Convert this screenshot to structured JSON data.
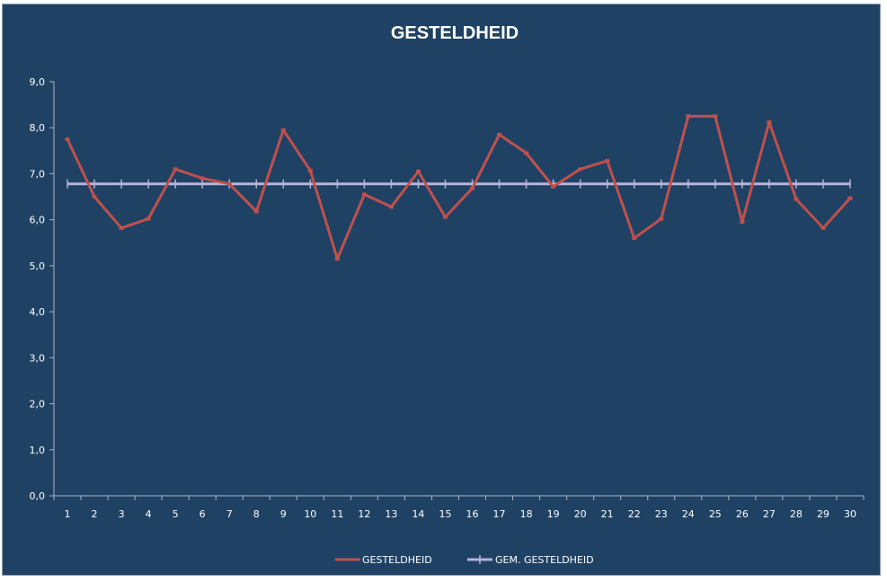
{
  "chart_data": {
    "type": "line",
    "title": "GESTELDHEID",
    "xlabel": "",
    "ylabel": "",
    "ylim": [
      0,
      9
    ],
    "y_ticks": [
      "0,0",
      "1,0",
      "2,0",
      "3,0",
      "4,0",
      "5,0",
      "6,0",
      "7,0",
      "8,0",
      "9,0"
    ],
    "y_tick_values": [
      0,
      1,
      2,
      3,
      4,
      5,
      6,
      7,
      8,
      9
    ],
    "categories": [
      "1",
      "2",
      "3",
      "4",
      "5",
      "6",
      "7",
      "8",
      "9",
      "10",
      "11",
      "12",
      "13",
      "14",
      "15",
      "16",
      "17",
      "18",
      "19",
      "20",
      "21",
      "22",
      "23",
      "24",
      "25",
      "26",
      "27",
      "28",
      "29",
      "30"
    ],
    "grid": false,
    "legend_position": "bottom",
    "series": [
      {
        "name": "GESTELDHEID",
        "color": "#c0504d",
        "values": [
          7.75,
          6.5,
          5.82,
          6.02,
          7.1,
          6.9,
          6.78,
          6.18,
          7.95,
          7.07,
          5.15,
          6.55,
          6.28,
          7.05,
          6.06,
          6.68,
          7.85,
          7.45,
          6.72,
          7.1,
          7.28,
          5.6,
          6.02,
          8.25,
          8.25,
          5.95,
          8.12,
          6.45,
          5.82,
          6.47
        ]
      },
      {
        "name": "GEM. GESTELDHEID",
        "color": "#b8b4d8",
        "values": [
          6.78,
          6.78,
          6.78,
          6.78,
          6.78,
          6.78,
          6.78,
          6.78,
          6.78,
          6.78,
          6.78,
          6.78,
          6.78,
          6.78,
          6.78,
          6.78,
          6.78,
          6.78,
          6.78,
          6.78,
          6.78,
          6.78,
          6.78,
          6.78,
          6.78,
          6.78,
          6.78,
          6.78,
          6.78,
          6.78
        ]
      }
    ]
  }
}
